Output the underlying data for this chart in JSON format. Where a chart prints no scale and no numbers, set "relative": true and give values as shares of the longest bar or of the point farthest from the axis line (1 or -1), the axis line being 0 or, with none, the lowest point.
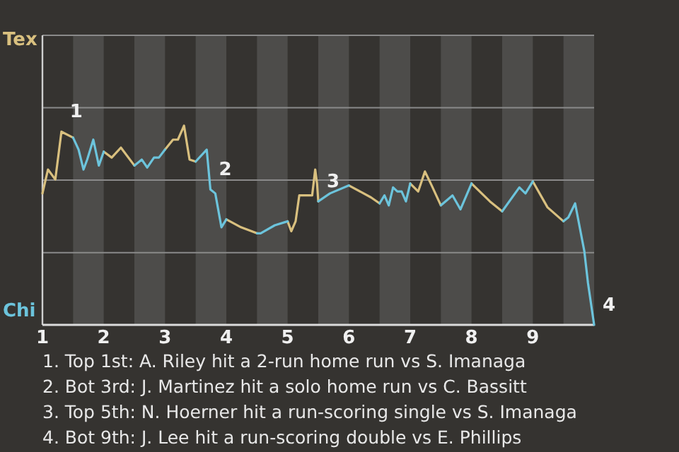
{
  "chart_data": {
    "type": "line",
    "relative": true,
    "xlim": [
      1,
      10
    ],
    "xticks": [
      1,
      2,
      3,
      4,
      5,
      6,
      7,
      8,
      9
    ],
    "legend": "left",
    "ref_lines": [
      {
        "axis": "y",
        "value": 0.363,
        "color": "#8a8a8a"
      },
      {
        "axis": "y",
        "value": 0.727,
        "color": "#8a8a8a"
      },
      {
        "axis": "y",
        "value": 1.09,
        "color": "#8a8a8a"
      },
      {
        "axis": "y",
        "value": 1.454,
        "color": "#8a8a8a"
      }
    ],
    "marker": "none",
    "line_style": "solid",
    "bands": [
      {
        "axis": "x",
        "from": 1.5,
        "to": 2,
        "color": "#4d4c4a"
      },
      {
        "axis": "x",
        "from": 2.5,
        "to": 3,
        "color": "#4d4c4a"
      },
      {
        "axis": "x",
        "from": 3.5,
        "to": 4,
        "color": "#4d4c4a"
      },
      {
        "axis": "x",
        "from": 4.5,
        "to": 5,
        "color": "#4d4c4a"
      },
      {
        "axis": "x",
        "from": 5.5,
        "to": 6,
        "color": "#4d4c4a"
      },
      {
        "axis": "x",
        "from": 6.5,
        "to": 7,
        "color": "#4d4c4a"
      },
      {
        "axis": "x",
        "from": 7.5,
        "to": 8,
        "color": "#4d4c4a"
      },
      {
        "axis": "x",
        "from": 8.5,
        "to": 9,
        "color": "#4d4c4a"
      },
      {
        "axis": "x",
        "from": 9.5,
        "to": 10,
        "color": "#4d4c4a"
      }
    ],
    "series": [
      {
        "name": "Tex",
        "color": "#d9c07f",
        "x": [
          1,
          1.09,
          1.21,
          1.31,
          1.5,
          null,
          2,
          2.13,
          2.28,
          2.5,
          null,
          3,
          3.13,
          3.21,
          3.31,
          3.4,
          3.5,
          null,
          4,
          4.24,
          4.5,
          null,
          5,
          5.06,
          5.13,
          5.19,
          5.4,
          5.45,
          5.48,
          5.5,
          null,
          6,
          6.36,
          6.5,
          null,
          7,
          7.13,
          7.24,
          7.35,
          7.5,
          null,
          8,
          8.3,
          8.5,
          null,
          9,
          9.24,
          9.5
        ],
        "values": [
          0.66,
          0.78,
          0.73,
          0.97,
          0.94,
          null,
          0.87,
          0.84,
          0.89,
          0.8,
          null,
          0.88,
          0.93,
          0.93,
          1,
          0.83,
          0.82,
          null,
          0.53,
          0.49,
          0.46,
          null,
          0.52,
          0.47,
          0.52,
          0.65,
          0.65,
          0.78,
          0.71,
          0.62,
          null,
          0.7,
          0.64,
          0.61,
          null,
          0.71,
          0.67,
          0.77,
          0.7,
          0.6,
          null,
          0.71,
          0.62,
          0.57,
          null,
          0.72,
          0.59,
          0.52
        ]
      },
      {
        "name": "Chi",
        "color": "#6cc4dc",
        "x": [
          1.5,
          1.59,
          1.67,
          1.73,
          1.83,
          1.92,
          2,
          null,
          2.5,
          2.62,
          2.71,
          2.82,
          2.9,
          3,
          null,
          3.5,
          3.68,
          3.74,
          3.82,
          3.92,
          4,
          null,
          4.5,
          4.56,
          4.79,
          5,
          null,
          5.5,
          5.69,
          6,
          null,
          6.5,
          6.58,
          6.65,
          6.72,
          6.79,
          6.86,
          6.93,
          7,
          null,
          7.5,
          7.69,
          7.82,
          8,
          null,
          8.5,
          8.78,
          8.88,
          9,
          null,
          9.5,
          9.58,
          9.69,
          9.84,
          9.9,
          10
        ],
        "values": [
          0.94,
          0.88,
          0.78,
          0.83,
          0.93,
          0.8,
          0.87,
          null,
          0.8,
          0.83,
          0.79,
          0.84,
          0.84,
          0.88,
          null,
          0.82,
          0.88,
          0.68,
          0.66,
          0.49,
          0.53,
          null,
          0.46,
          0.46,
          0.5,
          0.52,
          null,
          0.62,
          0.66,
          0.7,
          null,
          0.61,
          0.65,
          0.6,
          0.69,
          0.67,
          0.67,
          0.62,
          0.71,
          null,
          0.6,
          0.65,
          0.58,
          0.71,
          null,
          0.57,
          0.69,
          0.66,
          0.72,
          null,
          0.52,
          0.54,
          0.61,
          0.37,
          0.21,
          0
        ]
      }
    ],
    "annotations": [
      {
        "text": "1",
        "x": 1.31,
        "y": 0.97
      },
      {
        "text": "2",
        "x": 3.74,
        "y": 0.68
      },
      {
        "text": "3",
        "x": 5.5,
        "y": 0.62
      },
      {
        "text": "4",
        "x": 10,
        "y": 0
      },
      "1. Top 1st: A. Riley hit a 2-run home run vs S. Imanaga",
      "2. Bot 3rd: J. Martinez hit a solo home run vs C. Bassitt",
      "3. Top 5th: N. Hoerner hit a run-scoring single vs S. Imanaga",
      "4. Bot 9th: J. Lee hit a run-scoring double vs E. Phillips"
    ]
  }
}
